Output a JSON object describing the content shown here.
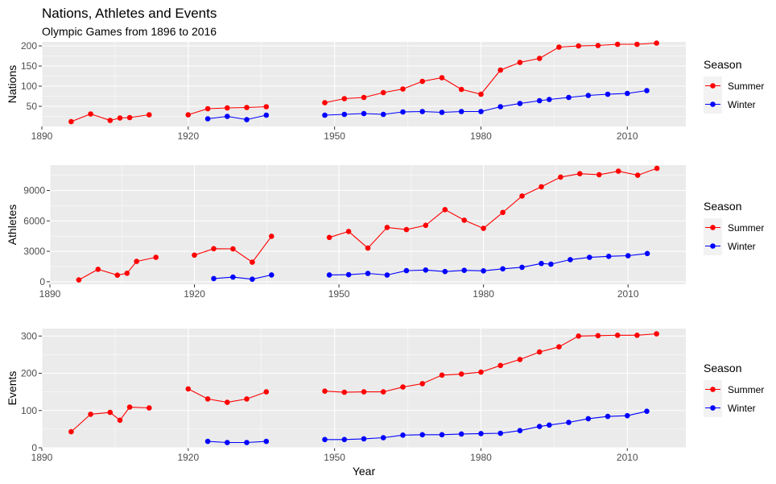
{
  "title": "Nations, Athletes and Events",
  "subtitle": "Olympic Games from 1896 to 2016",
  "colors": {
    "Summer": "#ff0000",
    "Winter": "#0000ff"
  },
  "chart_data": [
    {
      "type": "line",
      "ylabel": "Nations",
      "xlim": [
        1890,
        2022
      ],
      "ylim": [
        0,
        210
      ],
      "xticks": [
        1890,
        1920,
        1950,
        1980,
        2010
      ],
      "yticks": [
        50,
        100,
        150,
        200
      ],
      "grid": true,
      "legend_title": "Season",
      "legend_position": "right",
      "series": [
        {
          "name": "Summer",
          "segments": [
            [
              [
                1896,
                12
              ],
              [
                1900,
                31
              ],
              [
                1904,
                15
              ],
              [
                1906,
                21
              ],
              [
                1908,
                22
              ],
              [
                1912,
                29
              ]
            ],
            [
              [
                1920,
                29
              ],
              [
                1924,
                44
              ],
              [
                1928,
                46
              ],
              [
                1932,
                47
              ],
              [
                1936,
                49
              ]
            ],
            [
              [
                1948,
                59
              ],
              [
                1952,
                69
              ],
              [
                1956,
                72
              ],
              [
                1960,
                84
              ],
              [
                1964,
                93
              ],
              [
                1968,
                112
              ],
              [
                1972,
                121
              ],
              [
                1976,
                92
              ],
              [
                1980,
                80
              ],
              [
                1984,
                140
              ],
              [
                1988,
                159
              ],
              [
                1992,
                169
              ],
              [
                1996,
                197
              ],
              [
                2000,
                200
              ],
              [
                2004,
                201
              ],
              [
                2008,
                204
              ],
              [
                2012,
                204
              ],
              [
                2016,
                207
              ]
            ]
          ]
        },
        {
          "name": "Winter",
          "segments": [
            [
              [
                1924,
                19
              ],
              [
                1928,
                25
              ],
              [
                1932,
                17
              ],
              [
                1936,
                28
              ]
            ],
            [
              [
                1948,
                28
              ],
              [
                1952,
                30
              ],
              [
                1956,
                32
              ],
              [
                1960,
                30
              ],
              [
                1964,
                36
              ],
              [
                1968,
                37
              ],
              [
                1972,
                35
              ],
              [
                1976,
                37
              ],
              [
                1980,
                37
              ],
              [
                1984,
                49
              ],
              [
                1988,
                57
              ],
              [
                1992,
                64
              ],
              [
                1994,
                67
              ],
              [
                1998,
                72
              ],
              [
                2002,
                77
              ],
              [
                2006,
                80
              ],
              [
                2010,
                82
              ],
              [
                2014,
                89
              ]
            ]
          ]
        }
      ]
    },
    {
      "type": "line",
      "ylabel": "Athletes",
      "xlim": [
        1890,
        2022
      ],
      "ylim": [
        -250,
        11500
      ],
      "xticks": [
        1890,
        1920,
        1950,
        1980,
        2010
      ],
      "yticks": [
        0,
        3000,
        6000,
        9000
      ],
      "grid": true,
      "legend_title": "Season",
      "legend_position": "right",
      "series": [
        {
          "name": "Summer",
          "segments": [
            [
              [
                1896,
                176
              ],
              [
                1900,
                1224
              ],
              [
                1904,
                650
              ],
              [
                1906,
                841
              ],
              [
                1908,
                2008
              ],
              [
                1912,
                2407
              ]
            ],
            [
              [
                1920,
                2626
              ],
              [
                1924,
                3256
              ],
              [
                1928,
                3247
              ],
              [
                1932,
                1922
              ],
              [
                1936,
                4484
              ]
            ],
            [
              [
                1948,
                4373
              ],
              [
                1952,
                4955
              ],
              [
                1956,
                3314
              ],
              [
                1960,
                5352
              ],
              [
                1964,
                5137
              ],
              [
                1968,
                5558
              ],
              [
                1972,
                7113
              ],
              [
                1976,
                6073
              ],
              [
                1980,
                5259
              ],
              [
                1984,
                6829
              ],
              [
                1988,
                8454
              ],
              [
                1992,
                9367
              ],
              [
                1996,
                10320
              ],
              [
                2000,
                10650
              ],
              [
                2004,
                10557
              ],
              [
                2008,
                10900
              ],
              [
                2012,
                10500
              ],
              [
                2016,
                11180
              ]
            ]
          ]
        },
        {
          "name": "Winter",
          "segments": [
            [
              [
                1924,
                313
              ],
              [
                1928,
                460
              ],
              [
                1932,
                252
              ],
              [
                1936,
                668
              ]
            ],
            [
              [
                1948,
                669
              ],
              [
                1952,
                694
              ],
              [
                1956,
                821
              ],
              [
                1960,
                665
              ],
              [
                1964,
                1091
              ],
              [
                1968,
                1158
              ],
              [
                1972,
                1006
              ],
              [
                1976,
                1123
              ],
              [
                1980,
                1072
              ],
              [
                1984,
                1272
              ],
              [
                1988,
                1423
              ],
              [
                1992,
                1801
              ],
              [
                1994,
                1737
              ],
              [
                1998,
                2176
              ],
              [
                2002,
                2399
              ],
              [
                2006,
                2508
              ],
              [
                2010,
                2566
              ],
              [
                2014,
                2780
              ]
            ]
          ]
        }
      ]
    },
    {
      "type": "line",
      "ylabel": "Events",
      "xlabel": "Year",
      "xlim": [
        1890,
        2022
      ],
      "ylim": [
        0,
        320
      ],
      "xticks": [
        1890,
        1920,
        1950,
        1980,
        2010
      ],
      "yticks": [
        0,
        100,
        200,
        300
      ],
      "grid": true,
      "legend_title": "Season",
      "legend_position": "right",
      "series": [
        {
          "name": "Summer",
          "segments": [
            [
              [
                1896,
                43
              ],
              [
                1900,
                90
              ],
              [
                1904,
                95
              ],
              [
                1906,
                74
              ],
              [
                1908,
                109
              ],
              [
                1912,
                107
              ]
            ],
            [
              [
                1920,
                158
              ],
              [
                1924,
                131
              ],
              [
                1928,
                122
              ],
              [
                1932,
                131
              ],
              [
                1936,
                150
              ]
            ],
            [
              [
                1948,
                152
              ],
              [
                1952,
                149
              ],
              [
                1956,
                150
              ],
              [
                1960,
                150
              ],
              [
                1964,
                163
              ],
              [
                1968,
                172
              ],
              [
                1972,
                195
              ],
              [
                1976,
                198
              ],
              [
                1980,
                203
              ],
              [
                1984,
                221
              ],
              [
                1988,
                237
              ],
              [
                1992,
                257
              ],
              [
                1996,
                271
              ],
              [
                2000,
                300
              ],
              [
                2004,
                301
              ],
              [
                2008,
                302
              ],
              [
                2012,
                302
              ],
              [
                2016,
                306
              ]
            ]
          ]
        },
        {
          "name": "Winter",
          "segments": [
            [
              [
                1924,
                17
              ],
              [
                1928,
                14
              ],
              [
                1932,
                14
              ],
              [
                1936,
                17
              ]
            ],
            [
              [
                1948,
                22
              ],
              [
                1952,
                22
              ],
              [
                1956,
                24
              ],
              [
                1960,
                27
              ],
              [
                1964,
                34
              ],
              [
                1968,
                35
              ],
              [
                1972,
                35
              ],
              [
                1976,
                37
              ],
              [
                1980,
                38
              ],
              [
                1984,
                39
              ],
              [
                1988,
                46
              ],
              [
                1992,
                57
              ],
              [
                1994,
                61
              ],
              [
                1998,
                68
              ],
              [
                2002,
                78
              ],
              [
                2006,
                84
              ],
              [
                2010,
                86
              ],
              [
                2014,
                98
              ]
            ]
          ]
        }
      ]
    }
  ]
}
